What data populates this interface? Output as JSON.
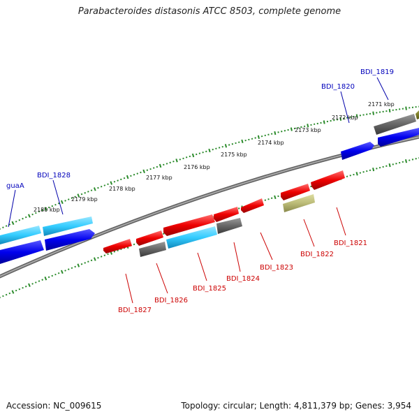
{
  "title": "Parabacteroides distasonis ATCC 8503, complete genome",
  "footer": {
    "accession": "Accession: NC_009615",
    "summary": "Topology: circular; Length: 4,811,379 bp; Genes: 3,954"
  },
  "scale_labels": [
    "2171 kbp",
    "2172 kbp",
    "2173 kbp",
    "2174 kbp",
    "2175 kbp",
    "2176 kbp",
    "2177 kbp",
    "2178 kbp",
    "2179 kbp",
    "2180 kbp"
  ],
  "gene_labels": {
    "outer": [
      "BDI_1819",
      "BDI_1820",
      "BDI_1828",
      "guaA"
    ],
    "inner": [
      "BDI_1821",
      "BDI_1822",
      "BDI_1823",
      "BDI_1824",
      "BDI_1825",
      "BDI_1826",
      "BDI_1827"
    ]
  },
  "colors": {
    "cds_forward": "#0000ee",
    "cds_reverse": "#ee0000",
    "rna": "#33ccff",
    "other": "#666666",
    "pseudo": "#bbbb77",
    "backbone": "#808080",
    "scale": "#2a8a2a"
  }
}
